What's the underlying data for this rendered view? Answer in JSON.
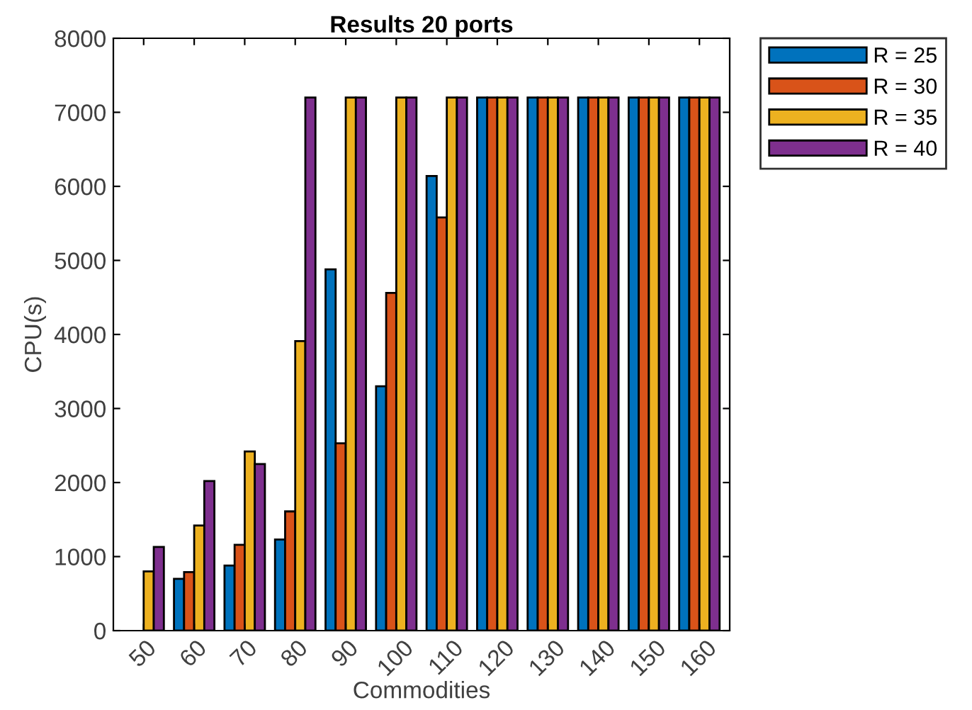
{
  "chart_data": {
    "type": "bar",
    "title": "Results 20 ports",
    "xlabel": "Commodities",
    "ylabel": "CPU(s)",
    "categories": [
      "50",
      "60",
      "70",
      "80",
      "90",
      "100",
      "110",
      "120",
      "130",
      "140",
      "150",
      "160"
    ],
    "series": [
      {
        "name": "R = 25",
        "color": "#0072bd",
        "values": [
          null,
          700,
          880,
          1230,
          4880,
          3300,
          6140,
          7200,
          7200,
          7200,
          7200,
          7200
        ]
      },
      {
        "name": "R = 30",
        "color": "#d95319",
        "values": [
          null,
          790,
          1160,
          1610,
          2530,
          4560,
          5580,
          7200,
          7200,
          7200,
          7200,
          7200
        ]
      },
      {
        "name": "R = 35",
        "color": "#edb120",
        "values": [
          800,
          1420,
          2420,
          3910,
          7200,
          7200,
          7200,
          7200,
          7200,
          7200,
          7200,
          7200
        ]
      },
      {
        "name": "R = 40",
        "color": "#7e2f8e",
        "values": [
          1130,
          2020,
          2250,
          7200,
          7200,
          7200,
          7200,
          7200,
          7200,
          7200,
          7200,
          7200
        ]
      }
    ],
    "ylim": [
      0,
      8000
    ],
    "yticks": [
      0,
      1000,
      2000,
      3000,
      4000,
      5000,
      6000,
      7000,
      8000
    ],
    "grid": false,
    "legend": "top right"
  }
}
